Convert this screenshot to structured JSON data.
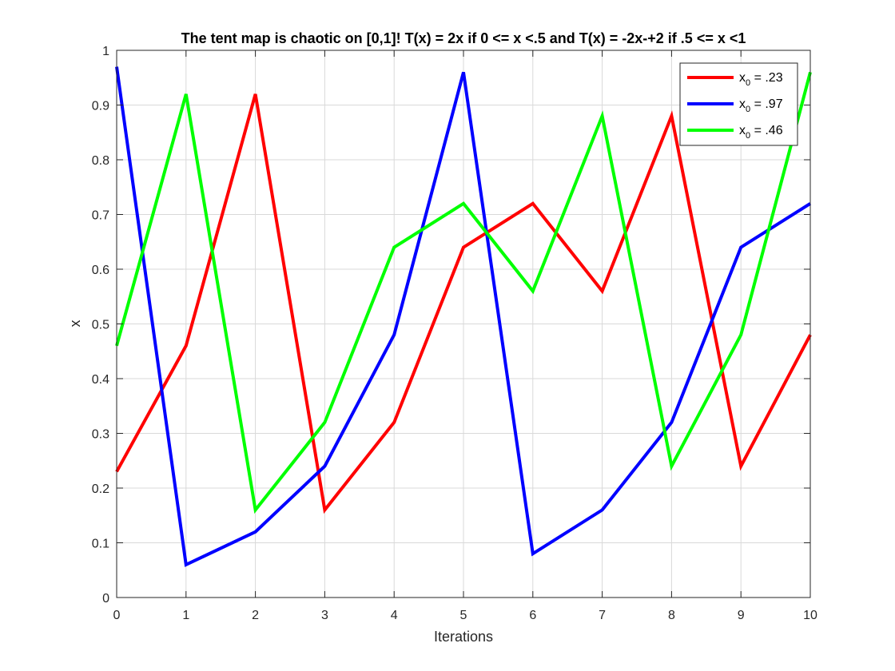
{
  "chart_data": {
    "type": "line",
    "title": "The tent map is chaotic on [0,1]! T(x) = 2x if 0 <= x <.5 and T(x) = -2x-+2 if .5 <= x <1",
    "xlabel": "Iterations",
    "ylabel": "x",
    "xlim": [
      0,
      10
    ],
    "ylim": [
      0,
      1
    ],
    "grid": true,
    "legend_position": "top-right",
    "x": [
      0,
      1,
      2,
      3,
      4,
      5,
      6,
      7,
      8,
      9,
      10
    ],
    "x_ticks": [
      "0",
      "1",
      "2",
      "3",
      "4",
      "5",
      "6",
      "7",
      "8",
      "9",
      "10"
    ],
    "y_ticks_values": [
      0,
      0.1,
      0.2,
      0.3,
      0.4,
      0.5,
      0.6,
      0.7,
      0.8,
      0.9,
      1
    ],
    "y_ticks": [
      "0",
      "0.1",
      "0.2",
      "0.3",
      "0.4",
      "0.5",
      "0.6",
      "0.7",
      "0.8",
      "0.9",
      "1"
    ],
    "series": [
      {
        "legend_main": "x",
        "legend_sub": "0",
        "legend_rest": " = .23",
        "color": "#ff0000",
        "values": [
          0.23,
          0.46,
          0.92,
          0.16,
          0.32,
          0.64,
          0.72,
          0.56,
          0.88,
          0.24,
          0.48
        ]
      },
      {
        "legend_main": "x",
        "legend_sub": "0",
        "legend_rest": " = .97",
        "color": "#0000ff",
        "values": [
          0.97,
          0.06,
          0.12,
          0.24,
          0.48,
          0.96,
          0.08,
          0.16,
          0.32,
          0.64,
          0.72
        ]
      },
      {
        "legend_main": "x",
        "legend_sub": "0",
        "legend_rest": " = .46",
        "color": "#00ff00",
        "values": [
          0.46,
          0.92,
          0.16,
          0.32,
          0.64,
          0.72,
          0.56,
          0.88,
          0.24,
          0.48,
          0.96
        ]
      }
    ]
  }
}
